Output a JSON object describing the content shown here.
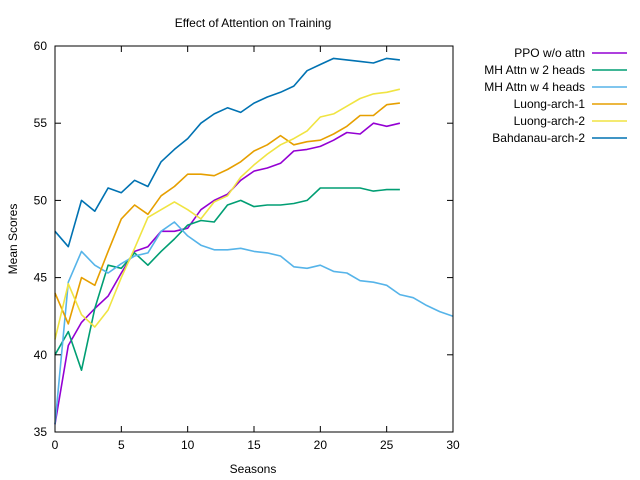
{
  "chart_data": {
    "type": "line",
    "title": "Effect of Attention on Training",
    "xlabel": "Seasons",
    "ylabel": "Mean Scores",
    "xlim": [
      0,
      30
    ],
    "ylim": [
      35,
      60
    ],
    "xticks": [
      0,
      5,
      10,
      15,
      20,
      25,
      30
    ],
    "yticks": [
      35,
      40,
      45,
      50,
      55,
      60
    ],
    "grid": false,
    "legend_position": "right",
    "series": [
      {
        "name": "PPO w/o attn",
        "color": "#9400d3",
        "x": [
          0,
          1,
          2,
          3,
          4,
          5,
          6,
          7,
          8,
          9,
          10,
          11,
          12,
          13,
          14,
          15,
          16,
          17,
          18,
          19,
          20,
          21,
          22,
          23,
          24,
          25,
          26
        ],
        "y": [
          35.5,
          40.6,
          42.1,
          43.0,
          43.8,
          45.3,
          46.7,
          47.0,
          48.0,
          48.0,
          48.2,
          49.4,
          50.0,
          50.4,
          51.3,
          51.9,
          52.1,
          52.4,
          53.2,
          53.3,
          53.5,
          53.9,
          54.4,
          54.3,
          55.0,
          54.8,
          55.0
        ]
      },
      {
        "name": "MH Attn w 2 heads",
        "color": "#009e73",
        "x": [
          0,
          1,
          2,
          3,
          4,
          5,
          6,
          7,
          8,
          9,
          10,
          11,
          12,
          13,
          14,
          15,
          16,
          17,
          18,
          19,
          20,
          21,
          22,
          23,
          24,
          25,
          26
        ],
        "y": [
          40.0,
          41.5,
          39.0,
          43.0,
          45.8,
          45.6,
          46.6,
          45.8,
          46.7,
          47.5,
          48.4,
          48.7,
          48.6,
          49.7,
          50.0,
          49.6,
          49.7,
          49.7,
          49.8,
          50.0,
          50.8,
          50.8,
          50.8,
          50.8,
          50.6,
          50.7,
          50.7
        ]
      },
      {
        "name": "MH Attn w 4 heads",
        "color": "#56b4e9",
        "x": [
          0,
          1,
          2,
          3,
          4,
          5,
          6,
          7,
          8,
          9,
          10,
          11,
          12,
          13,
          14,
          15,
          16,
          17,
          18,
          19,
          20,
          21,
          22,
          23,
          24,
          25,
          26,
          27,
          28,
          29,
          30
        ],
        "y": [
          35.5,
          44.7,
          46.7,
          45.8,
          45.3,
          45.9,
          46.4,
          46.6,
          48.0,
          48.6,
          47.7,
          47.1,
          46.8,
          46.8,
          46.9,
          46.7,
          46.6,
          46.4,
          45.7,
          45.6,
          45.8,
          45.4,
          45.3,
          44.8,
          44.7,
          44.5,
          43.9,
          43.7,
          43.2,
          42.8,
          42.5
        ]
      },
      {
        "name": "Luong-arch-1",
        "color": "#e69f00",
        "x": [
          0,
          1,
          2,
          3,
          4,
          5,
          6,
          7,
          8,
          9,
          10,
          11,
          12,
          13,
          14,
          15,
          16,
          17,
          18,
          19,
          20,
          21,
          22,
          23,
          24,
          25,
          26
        ],
        "y": [
          44.0,
          42.0,
          45.0,
          44.5,
          46.7,
          48.8,
          49.7,
          49.1,
          50.3,
          50.9,
          51.7,
          51.7,
          51.6,
          52.0,
          52.5,
          53.2,
          53.6,
          54.2,
          53.6,
          53.8,
          53.9,
          54.3,
          54.8,
          55.5,
          55.5,
          56.2,
          56.3
        ]
      },
      {
        "name": "Luong-arch-2",
        "color": "#f0e442",
        "x": [
          0,
          1,
          2,
          3,
          4,
          5,
          6,
          7,
          8,
          9,
          10,
          11,
          12,
          13,
          14,
          15,
          16,
          17,
          18,
          19,
          20,
          21,
          22,
          23,
          24,
          25,
          26
        ],
        "y": [
          41.0,
          44.6,
          42.6,
          41.8,
          42.9,
          45.0,
          46.9,
          48.9,
          49.4,
          49.9,
          49.4,
          48.8,
          49.9,
          50.3,
          51.5,
          52.3,
          53.0,
          53.6,
          54.0,
          54.5,
          55.4,
          55.6,
          56.1,
          56.6,
          56.9,
          57.0,
          57.2
        ]
      },
      {
        "name": "Bahdanau-arch-2",
        "color": "#0072b2",
        "x": [
          0,
          1,
          2,
          3,
          4,
          5,
          6,
          7,
          8,
          9,
          10,
          11,
          12,
          13,
          14,
          15,
          16,
          17,
          18,
          19,
          20,
          21,
          22,
          23,
          24,
          25,
          26
        ],
        "y": [
          48.0,
          47.0,
          50.0,
          49.3,
          50.8,
          50.5,
          51.3,
          50.9,
          52.5,
          53.3,
          54.0,
          55.0,
          55.6,
          56.0,
          55.7,
          56.3,
          56.7,
          57.0,
          57.4,
          58.4,
          58.8,
          59.2,
          59.1,
          59.0,
          58.9,
          59.2,
          59.1
        ]
      }
    ]
  }
}
